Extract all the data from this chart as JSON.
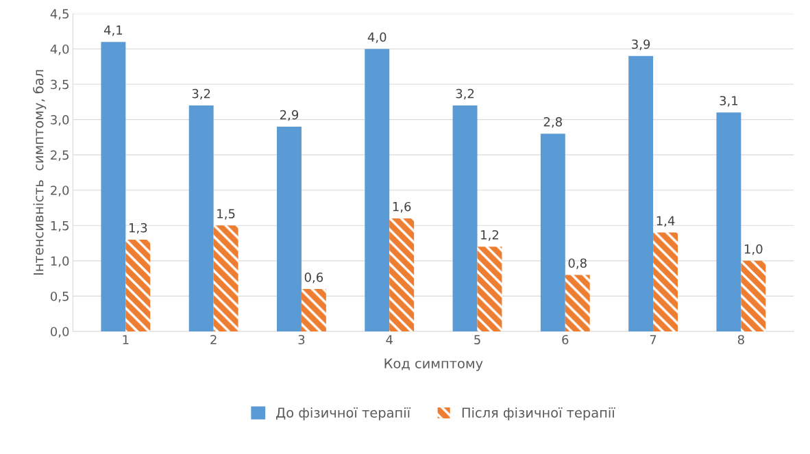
{
  "chart_data": {
    "type": "bar",
    "xlabel": "Код симптому",
    "ylabel": "Інтенсивність  симптому, бал",
    "categories": [
      "1",
      "2",
      "3",
      "4",
      "5",
      "6",
      "7",
      "8"
    ],
    "series": [
      {
        "name": "До фізичної терапії",
        "color": "#5b9bd5",
        "values": [
          4.1,
          3.2,
          2.9,
          4.0,
          3.2,
          2.8,
          3.9,
          3.1
        ],
        "value_labels": [
          "4,1",
          "3,2",
          "2,9",
          "4,0",
          "3,2",
          "2,8",
          "3,9",
          "3,1"
        ]
      },
      {
        "name": "Після фізичної терапії",
        "color": "#ed7d31",
        "values": [
          1.3,
          1.5,
          0.6,
          1.6,
          1.2,
          0.8,
          1.4,
          1.0
        ],
        "value_labels": [
          "1,3",
          "1,5",
          "0,6",
          "1,6",
          "1,2",
          "0,8",
          "1,4",
          "1,0"
        ]
      }
    ],
    "ylim": [
      0,
      4.5
    ],
    "yticks": [
      {
        "value": 0,
        "label": "0,0"
      },
      {
        "value": 0.5,
        "label": "0,5"
      },
      {
        "value": 1,
        "label": "1,0"
      },
      {
        "value": 1.5,
        "label": "1,5"
      },
      {
        "value": 2,
        "label": "2,0"
      },
      {
        "value": 2.5,
        "label": "2,5"
      },
      {
        "value": 3,
        "label": "3,0"
      },
      {
        "value": 3.5,
        "label": "3,5"
      },
      {
        "value": 4,
        "label": "4,0"
      },
      {
        "value": 4.5,
        "label": "4,5"
      }
    ],
    "grid": "y",
    "legend": "bottom"
  }
}
